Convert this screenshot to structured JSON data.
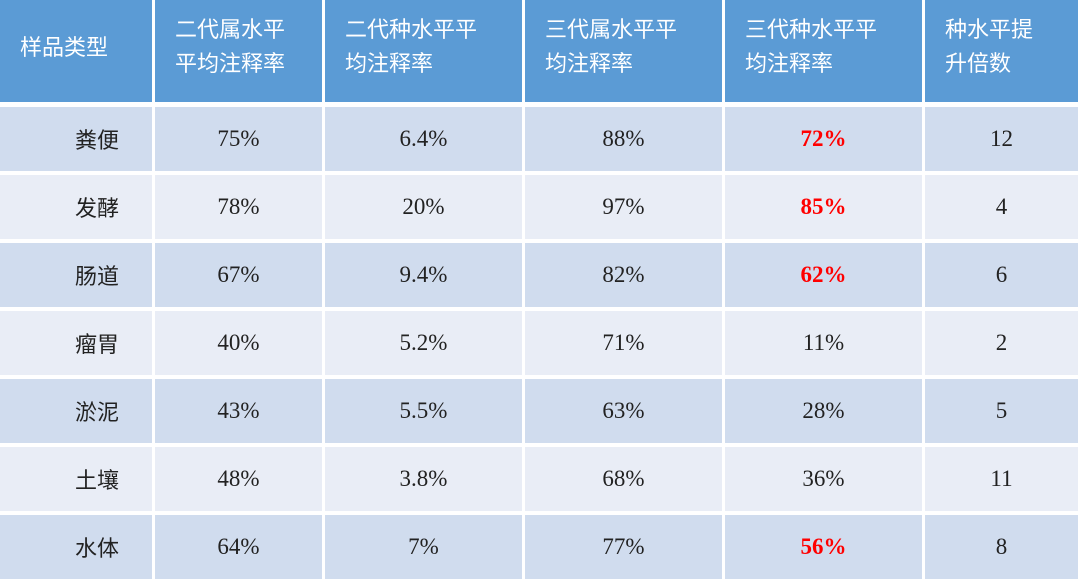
{
  "headers": [
    "样品类型",
    "二代属水平\n平均注释率",
    "二代种水平平\n均注释率",
    "三代属水平平\n均注释率",
    "三代种水平平\n均注释率",
    "种水平提\n升倍数"
  ],
  "rows": [
    {
      "type": "粪便",
      "ngs_genus": "75%",
      "ngs_species": "6.4%",
      "tgs_genus": "88%",
      "tgs_species": "72%",
      "fold": "12",
      "highlight": true
    },
    {
      "type": "发酵",
      "ngs_genus": "78%",
      "ngs_species": "20%",
      "tgs_genus": "97%",
      "tgs_species": "85%",
      "fold": "4",
      "highlight": true
    },
    {
      "type": "肠道",
      "ngs_genus": "67%",
      "ngs_species": "9.4%",
      "tgs_genus": "82%",
      "tgs_species": "62%",
      "fold": "6",
      "highlight": true
    },
    {
      "type": "瘤胃",
      "ngs_genus": "40%",
      "ngs_species": "5.2%",
      "tgs_genus": "71%",
      "tgs_species": "11%",
      "fold": "2",
      "highlight": false
    },
    {
      "type": "淤泥",
      "ngs_genus": "43%",
      "ngs_species": "5.5%",
      "tgs_genus": "63%",
      "tgs_species": "28%",
      "fold": "5",
      "highlight": false
    },
    {
      "type": "土壤",
      "ngs_genus": "48%",
      "ngs_species": "3.8%",
      "tgs_genus": "68%",
      "tgs_species": "36%",
      "fold": "11",
      "highlight": false
    },
    {
      "type": "水体",
      "ngs_genus": "64%",
      "ngs_species": "7%",
      "tgs_genus": "77%",
      "tgs_species": "56%",
      "fold": "8",
      "highlight": true
    }
  ],
  "colors": {
    "header": "#5b9bd5",
    "row_odd": "#d0dcee",
    "row_even": "#e9edf6",
    "highlight": "#ff0000"
  }
}
